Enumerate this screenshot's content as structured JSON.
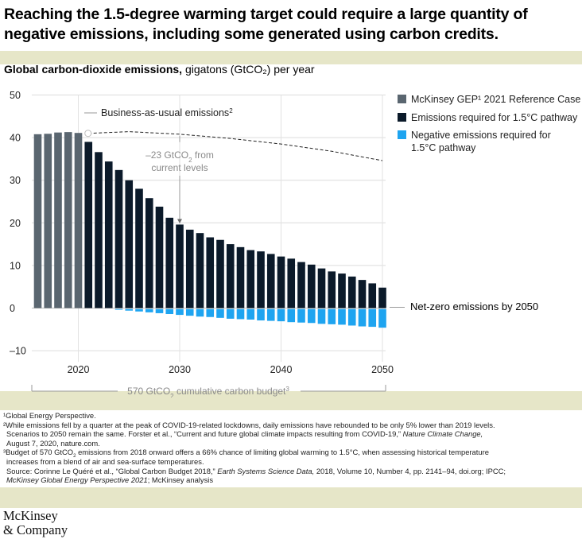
{
  "title": "Reaching the 1.5-degree warming target could require a large quantity of negative emissions, including some generated using carbon credits.",
  "subtitle": {
    "bold": "Global carbon-dioxide emissions,",
    "rest": "gigatons (GtCO₂) per year"
  },
  "chart_data": {
    "type": "bar",
    "ylim": [
      -10,
      50
    ],
    "yticks": [
      "50",
      "40",
      "30",
      "20",
      "10",
      "0",
      "–10"
    ],
    "xticks": [
      "2020",
      "2030",
      "2040",
      "2050"
    ],
    "grid": true,
    "legend_position": "right",
    "legend": [
      {
        "label": "McKinsey GEP¹ 2021 Reference Case",
        "color": "#5a6670"
      },
      {
        "label": "Emissions required for 1.5°C pathway",
        "color": "#0b1a2a"
      },
      {
        "label": "Negative emissions required for 1.5°C pathway",
        "color": "#1ea4f0"
      }
    ],
    "series": [
      {
        "name": "McKinsey GEP¹ 2021 Reference Case",
        "x": [
          2016,
          2017,
          2018,
          2019,
          2020
        ],
        "values": [
          40.8,
          40.9,
          41.2,
          41.3,
          41.1
        ]
      },
      {
        "name": "Emissions required for 1.5°C pathway",
        "x": [
          2021,
          2022,
          2023,
          2024,
          2025,
          2026,
          2027,
          2028,
          2029,
          2030,
          2031,
          2032,
          2033,
          2034,
          2035,
          2036,
          2037,
          2038,
          2039,
          2040,
          2041,
          2042,
          2043,
          2044,
          2045,
          2046,
          2047,
          2048,
          2049,
          2050
        ],
        "values": [
          39.0,
          36.6,
          34.4,
          32.4,
          30.0,
          28.0,
          25.8,
          23.8,
          21.2,
          19.6,
          18.4,
          17.6,
          16.6,
          16.0,
          15.0,
          14.3,
          13.6,
          13.3,
          12.7,
          12.1,
          11.6,
          10.8,
          10.2,
          9.3,
          8.6,
          8.1,
          7.4,
          6.6,
          5.8,
          4.8
        ]
      },
      {
        "name": "Negative emissions required for 1.5°C pathway",
        "x": [
          2024,
          2025,
          2026,
          2027,
          2028,
          2029,
          2030,
          2031,
          2032,
          2033,
          2034,
          2035,
          2036,
          2037,
          2038,
          2039,
          2040,
          2041,
          2042,
          2043,
          2044,
          2045,
          2046,
          2047,
          2048,
          2049,
          2050
        ],
        "values": [
          -0.4,
          -0.6,
          -0.8,
          -1.0,
          -1.2,
          -1.4,
          -1.6,
          -1.8,
          -2.0,
          -2.1,
          -2.3,
          -2.5,
          -2.6,
          -2.7,
          -2.9,
          -3.0,
          -3.1,
          -3.3,
          -3.4,
          -3.5,
          -3.7,
          -3.8,
          -3.9,
          -4.1,
          -4.3,
          -4.4,
          -4.6
        ]
      },
      {
        "name": "Business-as-usual emissions",
        "style": "dashed",
        "x": [
          2021,
          2025,
          2030,
          2035,
          2040,
          2045,
          2050
        ],
        "values": [
          41.0,
          41.4,
          40.8,
          39.8,
          38.5,
          36.8,
          34.6
        ]
      }
    ],
    "annotations": {
      "bau": "Business-as-usual emissions",
      "bau_sup": "2",
      "reduction_line1": "–23 GtCO",
      "reduction_sub": "2",
      "reduction_line1b": " from",
      "reduction_line2": "current levels",
      "reduction_year": 2030,
      "reduction_value": 19.6,
      "netzero": "Net-zero emissions by 2050",
      "budget": "570 GtCO",
      "budget_sub": "2",
      "budget_rest": " cumulative carbon budget",
      "budget_sup": "3"
    }
  },
  "footnotes": {
    "f1": "¹Global Energy Perspective.",
    "f2a": "²While emissions fell by a quarter at the peak of COVID-19-related lockdowns, daily emissions have rebounded to be only 5% lower than 2019 levels.",
    "f2b": "Scenarios to 2050 remain the same. Forster et al., “Current and future global climate impacts resulting from COVID-19,”",
    "f2b_italic": "Nature Climate Change,",
    "f2c": "August 7, 2020, nature.com.",
    "f3a_pre": "³Budget of 570 GtCO",
    "f3a_sub": "2",
    "f3a_post": " emissions from 2018 onward offers a 66% chance of limiting global warming to 1.5°C, when assessing historical temperature",
    "f3b": "increases from a blend of air and sea-surface temperatures.",
    "src1": "Source: Corinne Le Quéré et al., “Global Carbon Budget 2018,”",
    "src1_italic": "Earth Systems Science Data,",
    "src1_rest": "2018, Volume 10, Number 4, pp. 2141–94, doi.org; IPCC;",
    "src2_italic": "McKinsey Global Energy Perspective 2021",
    "src2_rest": "; McKinsey analysis"
  },
  "logo": {
    "line1": "McKinsey",
    "line2": "& Company"
  }
}
